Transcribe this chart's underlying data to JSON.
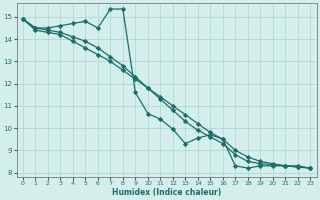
{
  "xlabel": "Humidex (Indice chaleur)",
  "bg_color": "#d4eeec",
  "grid_color": "#a8d5d0",
  "line_color": "#1a6e6a",
  "xlim": [
    -0.5,
    23.5
  ],
  "ylim": [
    7.8,
    15.6
  ],
  "xticks": [
    0,
    1,
    2,
    3,
    4,
    5,
    6,
    7,
    8,
    9,
    10,
    11,
    12,
    13,
    14,
    15,
    16,
    17,
    18,
    19,
    20,
    21,
    22,
    23
  ],
  "yticks": [
    8,
    9,
    10,
    11,
    12,
    13,
    14,
    15
  ],
  "line1_x": [
    0,
    1,
    2,
    3,
    4,
    5,
    6,
    7,
    8,
    9,
    10,
    11,
    12,
    13,
    14,
    15,
    16,
    17,
    18,
    19,
    20,
    21,
    22,
    23
  ],
  "line1_y": [
    14.9,
    14.4,
    14.3,
    14.2,
    13.9,
    13.6,
    13.3,
    13.0,
    12.6,
    12.2,
    11.8,
    11.4,
    11.0,
    10.6,
    10.2,
    9.8,
    9.5,
    9.0,
    8.7,
    8.5,
    8.4,
    8.3,
    8.25,
    8.2
  ],
  "line2_x": [
    0,
    1,
    2,
    3,
    4,
    5,
    6,
    7,
    8,
    9,
    10,
    11,
    12,
    13,
    14,
    15,
    16,
    17,
    18,
    19,
    20,
    21,
    22,
    23
  ],
  "line2_y": [
    14.9,
    14.5,
    14.4,
    14.3,
    14.1,
    13.9,
    13.6,
    13.2,
    12.8,
    12.3,
    11.8,
    11.3,
    10.8,
    10.3,
    9.9,
    9.6,
    9.3,
    8.8,
    8.5,
    8.4,
    8.35,
    8.3,
    8.25,
    8.2
  ],
  "line3_x": [
    0,
    1,
    2,
    3,
    4,
    5,
    6,
    7,
    8,
    9,
    10,
    11,
    12,
    13,
    14,
    15,
    16,
    17,
    18,
    19,
    20,
    21,
    22,
    23
  ],
  "line3_y": [
    14.9,
    14.5,
    14.5,
    14.6,
    14.7,
    14.8,
    14.5,
    15.35,
    15.35,
    11.6,
    10.65,
    10.4,
    9.95,
    9.3,
    9.55,
    9.7,
    9.5,
    8.3,
    8.2,
    8.3,
    8.3,
    8.3,
    8.3,
    8.2
  ]
}
